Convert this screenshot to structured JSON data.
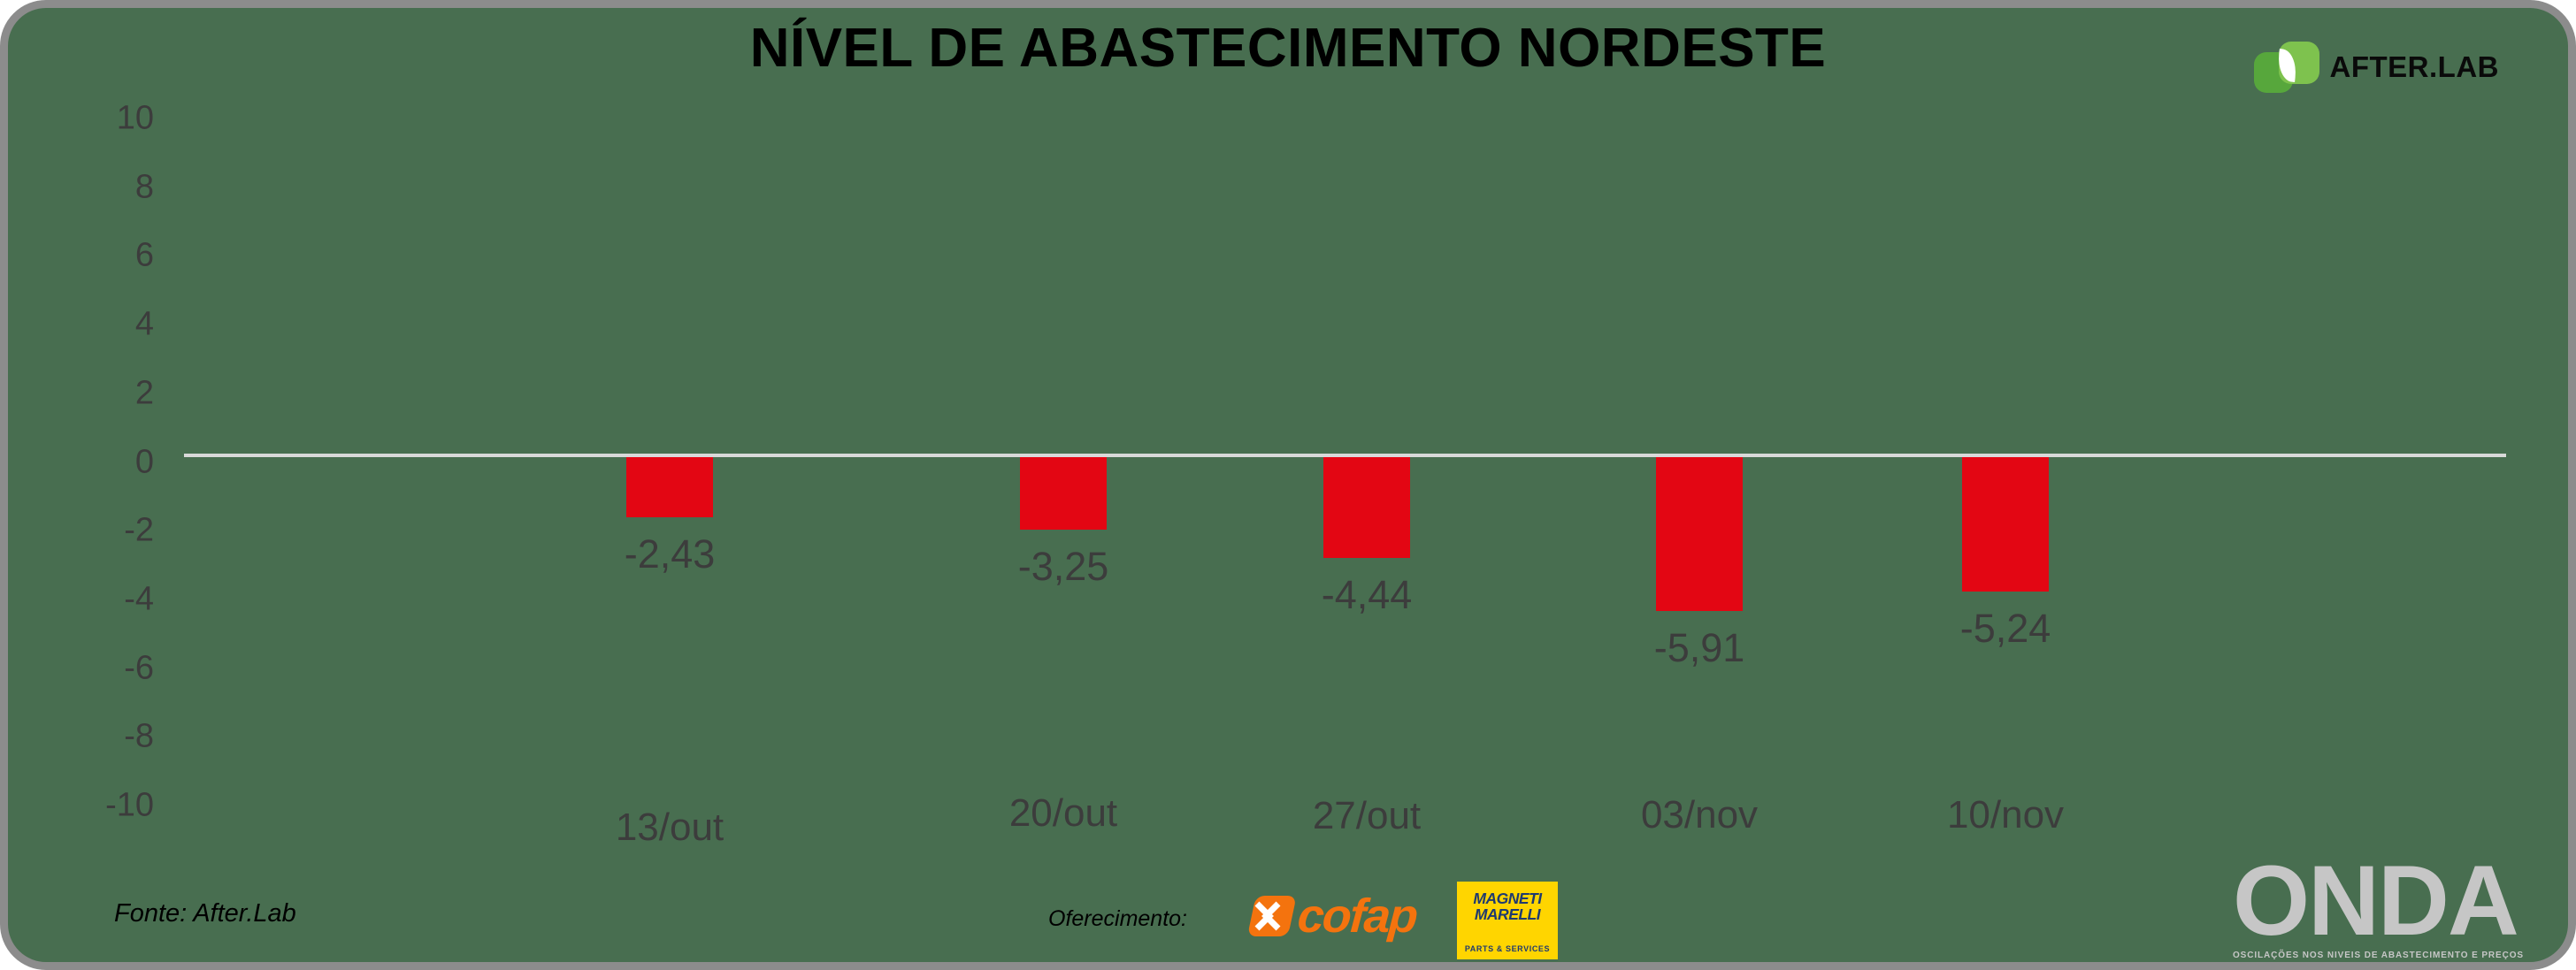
{
  "header": {
    "brand": "AFTER.LAB"
  },
  "chart_data": {
    "type": "bar",
    "title": "NÍVEL DE ABASTECIMENTO NORDESTE",
    "categories": [
      "13/out",
      "20/out",
      "27/out",
      "03/nov",
      "10/nov"
    ],
    "values": [
      -2.43,
      -3.25,
      -4.44,
      -5.91,
      -5.24
    ],
    "value_labels": [
      "-2,43",
      "-3,25",
      "-4,44",
      "-5,91",
      "-5,24"
    ],
    "yticks": [
      "10",
      "8",
      "6",
      "4",
      "2",
      "0",
      "-2",
      "-4",
      "-6",
      "-8",
      "-10"
    ],
    "ylim": [
      -10,
      10
    ],
    "xlabel": "",
    "ylabel": "",
    "grid": "off",
    "legend": "none",
    "zero_line": true,
    "bar_color": "#E30613"
  },
  "footer": {
    "source": "Fonte: After.Lab",
    "sponsored_label": "Oferecimento:",
    "sponsors": {
      "cofap": "cofap",
      "magneti_line1": "MAGNETI",
      "magneti_line2": "MARELLI",
      "magneti_sub": "PARTS & SERVICES"
    },
    "onda": {
      "name": "ONDA",
      "tagline": "OSCILAÇÕES NOS NIVEIS DE ABASTECIMENTO E PREÇOS"
    }
  },
  "colors": {
    "background": "#486E50",
    "border": "#8C8C8C",
    "bar": "#E30613",
    "text_dark": "#3C3C3C",
    "zero_line": "#D9D9D9",
    "afterlab_green_dark": "#57A73C",
    "afterlab_green_light": "#7EC24E",
    "cofap_orange": "#F4730E",
    "marelli_yellow": "#FFD500",
    "marelli_navy": "#1F3A70",
    "onda_gray": "#C6C6C6"
  }
}
